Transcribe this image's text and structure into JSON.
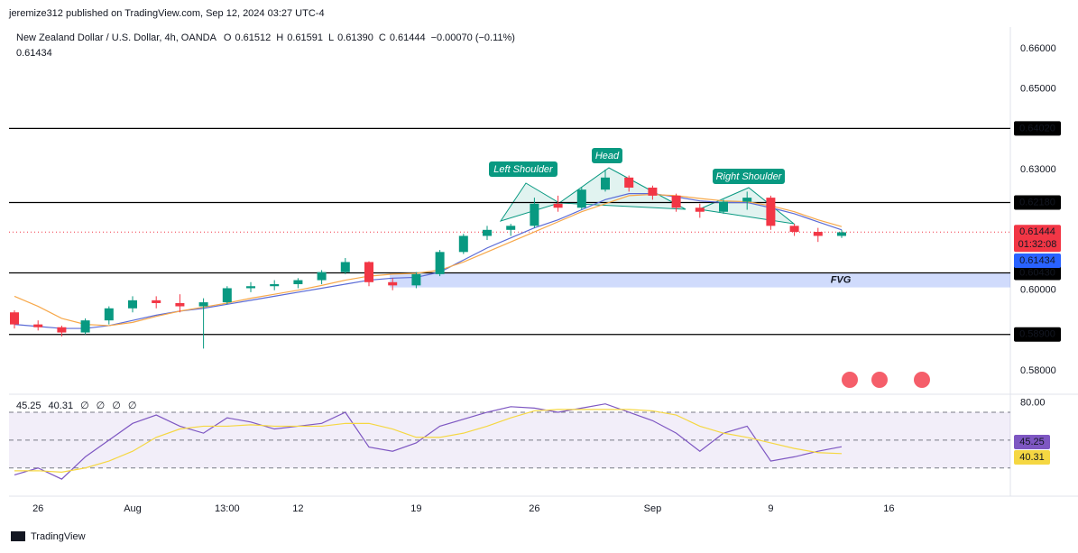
{
  "header": {
    "publisher": "jeremize312 published on TradingView.com, Sep 12, 2024 03:27 UTC-4"
  },
  "chart_data": [
    {
      "type": "candlestick",
      "title": "New Zealand Dollar / U.S. Dollar, 4h, OANDA",
      "ohlc_names": [
        "O",
        "H",
        "L",
        "C"
      ],
      "ohlc_values": [
        0.61512,
        0.61591,
        0.6139,
        0.61444
      ],
      "ohlc_value_labels": [
        "0.61512",
        "0.61591",
        "0.61390",
        "0.61444"
      ],
      "change": "−0.00070 (−0.11%)",
      "categories": [
        null,
        "26",
        null,
        null,
        null,
        "Aug",
        null,
        null,
        null,
        "13:00",
        null,
        null,
        "12",
        null,
        null,
        null,
        null,
        "19",
        null,
        null,
        null,
        null,
        "26",
        null,
        null,
        null,
        null,
        "Sep",
        null,
        null,
        null,
        null,
        "9",
        null,
        null,
        null,
        null,
        "16"
      ],
      "candles": [
        [
          0.5945,
          0.595,
          0.5905,
          0.5915
        ],
        [
          0.5915,
          0.5925,
          0.59,
          0.5908
        ],
        [
          0.5908,
          0.5912,
          0.5885,
          0.5895
        ],
        [
          0.5895,
          0.593,
          0.589,
          0.5925
        ],
        [
          0.5925,
          0.596,
          0.5915,
          0.5955
        ],
        [
          0.5955,
          0.5985,
          0.5945,
          0.5975
        ],
        [
          0.5975,
          0.5985,
          0.5955,
          0.5968
        ],
        [
          0.5968,
          0.599,
          0.5945,
          0.596
        ],
        [
          0.596,
          0.598,
          0.5855,
          0.597
        ],
        [
          0.597,
          0.601,
          0.5965,
          0.6005
        ],
        [
          0.6005,
          0.602,
          0.5995,
          0.601
        ],
        [
          0.601,
          0.6025,
          0.6,
          0.6015
        ],
        [
          0.6015,
          0.603,
          0.6005,
          0.6025
        ],
        [
          0.6025,
          0.605,
          0.6015,
          0.6045
        ],
        [
          0.6045,
          0.608,
          0.604,
          0.607
        ],
        [
          0.607,
          0.6072,
          0.601,
          0.602
        ],
        [
          0.602,
          0.603,
          0.6,
          0.6012
        ],
        [
          0.6012,
          0.6045,
          0.6005,
          0.604
        ],
        [
          0.604,
          0.61,
          0.6035,
          0.6095
        ],
        [
          0.6095,
          0.614,
          0.609,
          0.6135
        ],
        [
          0.6135,
          0.616,
          0.6125,
          0.615
        ],
        [
          0.615,
          0.6165,
          0.6135,
          0.616
        ],
        [
          0.616,
          0.623,
          0.6155,
          0.6215
        ],
        [
          0.6215,
          0.6235,
          0.6195,
          0.6205
        ],
        [
          0.6205,
          0.6255,
          0.62,
          0.625
        ],
        [
          0.625,
          0.63,
          0.6245,
          0.628
        ],
        [
          0.628,
          0.6285,
          0.6245,
          0.6255
        ],
        [
          0.6255,
          0.626,
          0.6225,
          0.6235
        ],
        [
          0.6235,
          0.624,
          0.6195,
          0.6205
        ],
        [
          0.6205,
          0.6215,
          0.618,
          0.6195
        ],
        [
          0.6195,
          0.6225,
          0.619,
          0.622
        ],
        [
          0.622,
          0.6245,
          0.62,
          0.623
        ],
        [
          0.623,
          0.6235,
          0.615,
          0.616
        ],
        [
          0.616,
          0.6165,
          0.6135,
          0.6145
        ],
        [
          0.6145,
          0.6155,
          0.612,
          0.6135
        ],
        [
          0.6135,
          0.615,
          0.613,
          0.6144
        ],
        null,
        null
      ],
      "up_color": "#089981",
      "down_color": "#f23645",
      "series": [
        {
          "color": "#5b6bd6",
          "values": [
            0.5915,
            0.591,
            0.5905,
            0.5905,
            0.5912,
            0.5925,
            0.5938,
            0.5948,
            0.5955,
            0.5965,
            0.5975,
            0.5985,
            0.5995,
            0.6005,
            0.6015,
            0.6025,
            0.603,
            0.6032,
            0.6045,
            0.6075,
            0.6105,
            0.613,
            0.6155,
            0.6175,
            0.62,
            0.6225,
            0.624,
            0.624,
            0.6232,
            0.6222,
            0.6218,
            0.6218,
            0.6205,
            0.619,
            0.617,
            0.615,
            null,
            null
          ]
        },
        {
          "color": "#f7a84a",
          "values": [
            0.5985,
            0.596,
            0.593,
            0.5915,
            0.5912,
            0.592,
            0.5935,
            0.5948,
            0.5958,
            0.5968,
            0.598,
            0.599,
            0.6,
            0.6012,
            0.6025,
            0.6035,
            0.604,
            0.6042,
            0.605,
            0.607,
            0.6095,
            0.612,
            0.6145,
            0.617,
            0.6195,
            0.6215,
            0.6235,
            0.6238,
            0.6235,
            0.6228,
            0.6222,
            0.622,
            0.621,
            0.6195,
            0.6175,
            0.6158,
            null,
            null
          ]
        }
      ],
      "ylim": [
        0.5746,
        0.6654
      ],
      "yticks": [
        {
          "value": 0.66,
          "label": "0.66000"
        },
        {
          "value": 0.65,
          "label": "0.65000"
        },
        {
          "value": 0.63,
          "label": "0.63000"
        },
        {
          "value": 0.6,
          "label": "0.60000"
        },
        {
          "value": 0.58,
          "label": "0.58000"
        }
      ],
      "levels": {
        "values": [
          0.6402,
          0.6218,
          0.6043,
          0.589
        ],
        "value_labels": [
          "0.64020",
          "0.62180",
          "0.60430",
          "0.58900"
        ]
      },
      "last_price": 0.61444,
      "countdown": "01:32:08",
      "indicator_value": 0.61434,
      "fvg": {
        "label": "FVG",
        "low": 0.6007,
        "high": 0.6043
      },
      "annotations": [
        "Left Shoulder",
        "Head",
        "Right Shoulder"
      ]
    },
    {
      "type": "line",
      "header_symbols": [
        "∅",
        "∅",
        "∅",
        "∅"
      ],
      "series": [
        {
          "color": "#7e57c2",
          "values": [
            25,
            30,
            22,
            38,
            50,
            62,
            68,
            60,
            55,
            66,
            63,
            58,
            60,
            62,
            70,
            45,
            42,
            48,
            60,
            65,
            70,
            74,
            73,
            70,
            73,
            76,
            70,
            64,
            55,
            42,
            55,
            60,
            35,
            38,
            42,
            45.25,
            null,
            null
          ]
        },
        {
          "color": "#f5d742",
          "values": [
            28,
            28,
            27,
            30,
            35,
            42,
            52,
            58,
            60,
            60,
            61,
            60,
            60,
            60,
            62,
            62,
            58,
            52,
            52,
            55,
            60,
            66,
            71,
            72,
            72,
            72,
            72,
            71,
            68,
            60,
            55,
            52,
            48,
            44,
            41,
            40.31,
            null,
            null
          ]
        }
      ],
      "ylim": [
        13,
        81
      ],
      "yticks": [
        {
          "value": 80,
          "label": "80.00"
        }
      ],
      "bands": [
        70,
        50,
        30
      ]
    }
  ],
  "footer": {
    "brand": "TradingView"
  }
}
